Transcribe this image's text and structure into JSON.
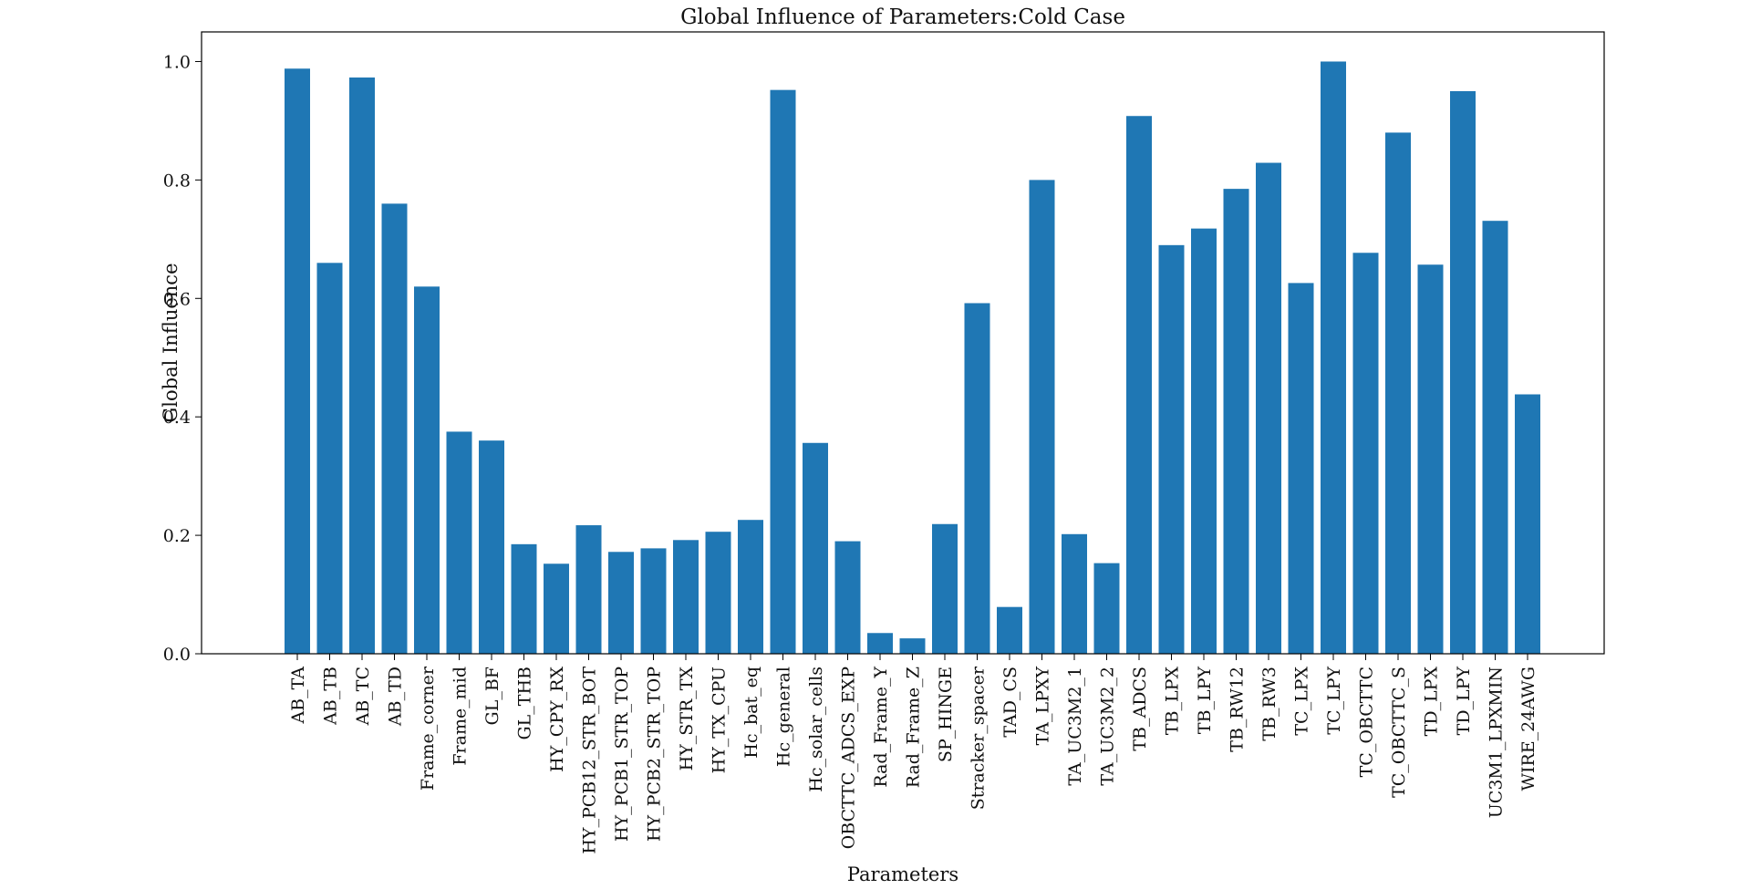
{
  "chart_data": {
    "type": "bar",
    "title": "Global Influence of Parameters:Cold Case",
    "xlabel": "Parameters",
    "ylabel": "Global Influence",
    "ylim": [
      0,
      1.05
    ],
    "yticks": [
      "0.0",
      "0.2",
      "0.4",
      "0.6",
      "0.8",
      "1.0"
    ],
    "grid": false,
    "bar_color": "#1f77b4",
    "categories": [
      "AB_TA",
      "AB_TB",
      "AB_TC",
      "AB_TD",
      "Frame_corner",
      "Frame_mid",
      "GL_BF",
      "GL_THB",
      "HY_CPY_RX",
      "HY_PCB12_STR_BOT",
      "HY_PCB1_STR_TOP",
      "HY_PCB2_STR_TOP",
      "HY_STR_TX",
      "HY_TX_CPU",
      "Hc_bat_eq",
      "Hc_general",
      "Hc_solar_cells",
      "OBCTTC_ADCS_EXP",
      "Rad_Frame_Y",
      "Rad_Frame_Z",
      "SP_HINGE",
      "Stracker_spacer",
      "TAD_CS",
      "TA_LPXY",
      "TA_UC3M2_1",
      "TA_UC3M2_2",
      "TB_ADCS",
      "TB_LPX",
      "TB_LPY",
      "TB_RW12",
      "TB_RW3",
      "TC_LPX",
      "TC_LPY",
      "TC_OBCTTC",
      "TC_OBCTTC_S",
      "TD_LPX",
      "TD_LPY",
      "UC3M1_LPXMIN",
      "WIRE_24AWG"
    ],
    "values": [
      0.988,
      0.66,
      0.973,
      0.76,
      0.62,
      0.375,
      0.36,
      0.185,
      0.152,
      0.217,
      0.172,
      0.178,
      0.192,
      0.206,
      0.226,
      0.952,
      0.356,
      0.19,
      0.035,
      0.026,
      0.219,
      0.592,
      0.079,
      0.8,
      0.202,
      0.153,
      0.908,
      0.69,
      0.718,
      0.785,
      0.829,
      0.626,
      1.0,
      0.677,
      0.88,
      0.657,
      0.95,
      0.731,
      0.438
    ]
  }
}
